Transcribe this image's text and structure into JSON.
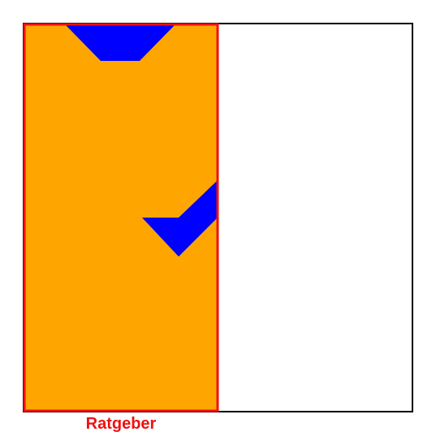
{
  "caption": {
    "label": "Ratgeber"
  },
  "colors": {
    "panel_fill": "#ffa500",
    "panel_border": "#ee1111",
    "shape_fill": "#0000ff",
    "outer_border": "#000000",
    "caption": "#ee1111",
    "background": "#ffffff"
  },
  "shapes": {
    "top_shape": "trapezoid",
    "middle_shape": "chevron"
  }
}
